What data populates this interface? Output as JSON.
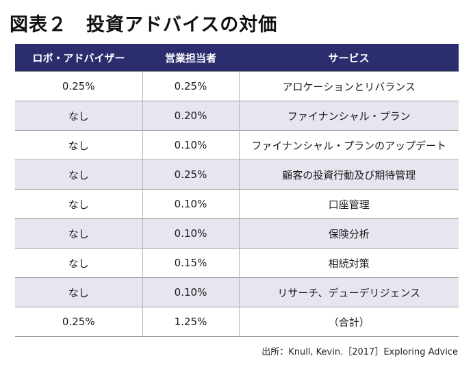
{
  "title": "図表２　投資アドバイスの対価",
  "table": {
    "headers": [
      "ロボ・アドバイザー",
      "営業担当者",
      "サービス"
    ],
    "rows": [
      [
        "0.25%",
        "0.25%",
        "アロケーションとリバランス"
      ],
      [
        "なし",
        "0.20%",
        "ファイナンシャル・プラン"
      ],
      [
        "なし",
        "0.10%",
        "ファイナンシャル・プランのアップデート"
      ],
      [
        "なし",
        "0.25%",
        "顧客の投資行動及び期待管理"
      ],
      [
        "なし",
        "0.10%",
        "口座管理"
      ],
      [
        "なし",
        "0.10%",
        "保険分析"
      ],
      [
        "なし",
        "0.15%",
        "相続対策"
      ],
      [
        "なし",
        "0.10%",
        "リサーチ、デューデリジェンス"
      ],
      [
        "0.25%",
        "1.25%",
        "（合計）"
      ]
    ]
  },
  "source": "出所：Knull, Kevin.［2017］Exploring Advice",
  "colors": {
    "header_bg": "#2b2d6e",
    "stripe_bg": "#e5e6ef"
  }
}
